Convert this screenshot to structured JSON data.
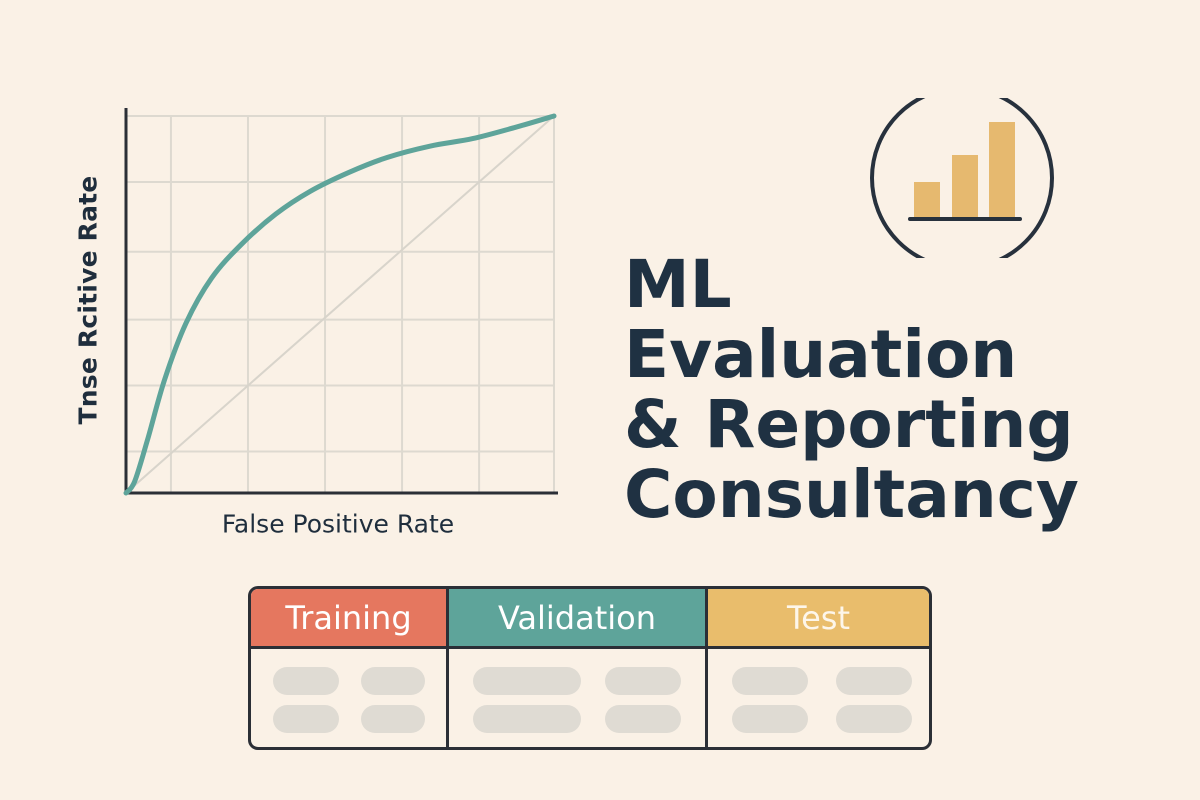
{
  "colors": {
    "background": "#faf1e6",
    "ink": "#1f3142",
    "curve": "#5ea49a",
    "grid": "#ddd9d0",
    "diagonal": "#d8d4cb",
    "training": "#e5775f",
    "validation": "#5ea49a",
    "test": "#e9bd6c",
    "placeholder": "#dfdbd3",
    "badge_bars": "#e6b96f"
  },
  "chart_data": {
    "type": "line",
    "title": "",
    "xlabel": "False Positive Rate",
    "ylabel": "Tnse Rcitive Rate",
    "xlim": [
      0,
      1
    ],
    "ylim": [
      0,
      1
    ],
    "grid": true,
    "tick_labels": false,
    "series": [
      {
        "x": [
          0,
          0.02,
          0.05,
          0.09,
          0.14,
          0.2,
          0.27,
          0.35,
          0.43,
          0.52,
          0.61,
          0.71,
          0.81,
          0.91,
          1
        ],
        "y": [
          0,
          0.03,
          0.14,
          0.3,
          0.45,
          0.57,
          0.66,
          0.74,
          0.8,
          0.85,
          0.89,
          0.92,
          0.94,
          0.97,
          1
        ]
      }
    ],
    "reference_line": {
      "x": [
        0,
        1
      ],
      "y": [
        0,
        1
      ]
    }
  },
  "badge": {
    "icon": "bar-chart-icon",
    "bar_values": [
      1,
      2,
      3
    ]
  },
  "title": {
    "lines": [
      "ML",
      "Evaluation",
      "& Reporting",
      "Consultancy"
    ]
  },
  "splits": {
    "columns": [
      {
        "label": "Training",
        "color": "#e5775f"
      },
      {
        "label": "Validation",
        "color": "#5ea49a"
      },
      {
        "label": "Test",
        "color": "#e9bd6c"
      }
    ]
  }
}
